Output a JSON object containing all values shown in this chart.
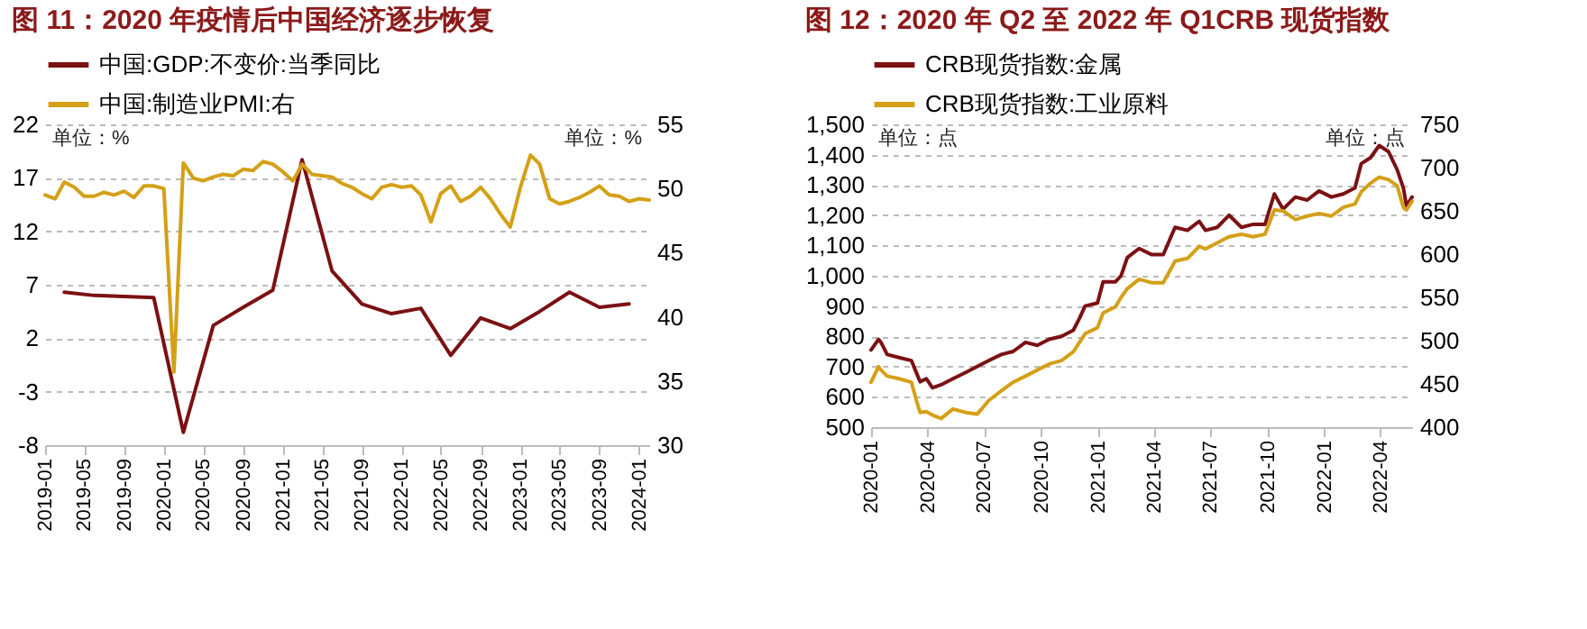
{
  "chart_data": [
    {
      "type": "line",
      "title": "图 11：2020 年疫情后中国经济逐步恢复",
      "annotations": [
        "单位：%",
        "单位：%"
      ],
      "xlim": [
        "2019-01",
        "2024-02"
      ],
      "xticks": [
        "2019-01",
        "2019-05",
        "2019-09",
        "2020-01",
        "2020-05",
        "2020-09",
        "2021-01",
        "2021-05",
        "2021-09",
        "2022-01",
        "2022-05",
        "2022-09",
        "2023-01",
        "2023-05",
        "2023-09",
        "2024-01"
      ],
      "ylim": [
        -8,
        22
      ],
      "yticks": [
        -8,
        -3,
        2,
        7,
        12,
        17,
        22
      ],
      "y2lim": [
        30,
        55
      ],
      "y2ticks": [
        30,
        35,
        40,
        45,
        50,
        55
      ],
      "grid": "y",
      "legend": "top",
      "series": [
        {
          "name": "中国:GDP:不变价:当季同比",
          "color": "#7b1113",
          "x": [
            "2019-03",
            "2019-06",
            "2019-09",
            "2019-12",
            "2020-03",
            "2020-06",
            "2020-09",
            "2020-12",
            "2021-03",
            "2021-06",
            "2021-09",
            "2021-12",
            "2022-03",
            "2022-06",
            "2022-09",
            "2022-12",
            "2023-03",
            "2023-06",
            "2023-09",
            "2023-12"
          ],
          "values": [
            6.3,
            6.0,
            5.9,
            5.8,
            -6.8,
            3.2,
            4.9,
            6.5,
            18.7,
            8.3,
            5.2,
            4.3,
            4.8,
            0.4,
            3.9,
            2.9,
            4.5,
            6.3,
            4.9,
            5.2
          ]
        },
        {
          "name": "中国:制造业PMI:右",
          "color": "#d4a017",
          "axis": "y2",
          "x": [
            "2019-01",
            "2019-02",
            "2019-03",
            "2019-04",
            "2019-05",
            "2019-06",
            "2019-07",
            "2019-08",
            "2019-09",
            "2019-10",
            "2019-11",
            "2019-12",
            "2020-01",
            "2020-02",
            "2020-03",
            "2020-04",
            "2020-05",
            "2020-06",
            "2020-07",
            "2020-08",
            "2020-09",
            "2020-10",
            "2020-11",
            "2020-12",
            "2021-01",
            "2021-02",
            "2021-03",
            "2021-04",
            "2021-05",
            "2021-06",
            "2021-07",
            "2021-08",
            "2021-09",
            "2021-10",
            "2021-11",
            "2021-12",
            "2022-01",
            "2022-02",
            "2022-03",
            "2022-04",
            "2022-05",
            "2022-06",
            "2022-07",
            "2022-08",
            "2022-09",
            "2022-10",
            "2022-11",
            "2022-12",
            "2023-01",
            "2023-02",
            "2023-03",
            "2023-04",
            "2023-05",
            "2023-06",
            "2023-07",
            "2023-08",
            "2023-09",
            "2023-10",
            "2023-11",
            "2023-12",
            "2024-01",
            "2024-02"
          ],
          "values": [
            49.5,
            49.2,
            50.5,
            50.1,
            49.4,
            49.4,
            49.7,
            49.5,
            49.8,
            49.3,
            50.2,
            50.2,
            50.0,
            35.7,
            52.0,
            50.8,
            50.6,
            50.9,
            51.1,
            51.0,
            51.5,
            51.4,
            52.1,
            51.9,
            51.3,
            50.6,
            51.9,
            51.1,
            51.0,
            50.9,
            50.4,
            50.1,
            49.6,
            49.2,
            50.1,
            50.3,
            50.1,
            50.2,
            49.5,
            47.4,
            49.6,
            50.2,
            49.0,
            49.4,
            50.1,
            49.2,
            48.0,
            47.0,
            50.1,
            52.6,
            51.9,
            49.2,
            48.8,
            49.0,
            49.3,
            49.7,
            50.2,
            49.5,
            49.4,
            49.0,
            49.2,
            49.1
          ]
        }
      ]
    },
    {
      "type": "line",
      "title": "图 12：2020 年 Q2 至 2022 年 Q1CRB 现货指数",
      "annotations": [
        "单位：点",
        "单位：点"
      ],
      "xlim": [
        "2020-01-01",
        "2022-05-22"
      ],
      "xticks": [
        "2020-01",
        "2020-04",
        "2020-07",
        "2020-10",
        "2021-01",
        "2021-04",
        "2021-07",
        "2021-10",
        "2022-01",
        "2022-04"
      ],
      "ylim": [
        500,
        1500
      ],
      "yticks": [
        500,
        600,
        700,
        800,
        900,
        {
          "value": 1000,
          "label": "1,000"
        },
        {
          "value": 1100,
          "label": "1,100"
        },
        {
          "value": 1200,
          "label": "1,200"
        },
        {
          "value": 1300,
          "label": "1,300"
        },
        {
          "value": 1400,
          "label": "1,400"
        },
        {
          "value": 1500,
          "label": "1,500"
        }
      ],
      "y2lim": [
        400,
        750
      ],
      "y2ticks": [
        400,
        450,
        500,
        550,
        600,
        650,
        700,
        750
      ],
      "grid": "y",
      "legend": "top",
      "series": [
        {
          "name": "CRB现货指数:金属",
          "color": "#7b1113",
          "x": [
            "2020-01-01",
            "2020-01-13",
            "2020-01-17",
            "2020-01-27",
            "2020-02-15",
            "2020-03-06",
            "2020-03-14",
            "2020-03-20",
            "2020-03-30",
            "2020-04-09",
            "2020-04-23",
            "2020-05-12",
            "2020-06-01",
            "2020-06-20",
            "2020-07-09",
            "2020-07-29",
            "2020-08-17",
            "2020-09-06",
            "2020-09-25",
            "2020-10-14",
            "2020-11-03",
            "2020-11-22",
            "2020-12-02",
            "2020-12-11",
            "2020-12-31",
            "2021-01-09",
            "2021-01-29",
            "2021-02-07",
            "2021-02-17",
            "2021-03-08",
            "2021-03-28",
            "2021-04-16",
            "2021-05-05",
            "2021-05-25",
            "2021-06-13",
            "2021-06-23",
            "2021-07-12",
            "2021-07-31",
            "2021-08-20",
            "2021-09-08",
            "2021-09-27",
            "2021-10-12",
            "2021-10-26",
            "2021-11-15",
            "2021-12-04",
            "2021-12-23",
            "2022-01-12",
            "2022-01-31",
            "2022-02-19",
            "2022-03-01",
            "2022-03-16",
            "2022-03-30",
            "2022-04-14",
            "2022-04-28",
            "2022-05-08",
            "2022-05-13",
            "2022-05-22"
          ],
          "values": [
            755,
            790,
            780,
            740,
            730,
            720,
            680,
            650,
            660,
            630,
            640,
            660,
            680,
            700,
            720,
            740,
            750,
            780,
            770,
            790,
            800,
            820,
            860,
            900,
            910,
            980,
            980,
            1000,
            1060,
            1090,
            1070,
            1070,
            1160,
            1150,
            1180,
            1150,
            1160,
            1200,
            1160,
            1170,
            1170,
            1270,
            1220,
            1260,
            1250,
            1280,
            1260,
            1270,
            1290,
            1370,
            1390,
            1430,
            1410,
            1350,
            1290,
            1230,
            1260
          ]
        },
        {
          "name": "CRB现货指数:工业原料",
          "color": "#d4a017",
          "axis": "y2",
          "x": [
            "2020-01-01",
            "2020-01-13",
            "2020-01-17",
            "2020-01-27",
            "2020-02-15",
            "2020-03-06",
            "2020-03-14",
            "2020-03-20",
            "2020-03-30",
            "2020-04-09",
            "2020-04-23",
            "2020-05-12",
            "2020-06-01",
            "2020-06-20",
            "2020-07-09",
            "2020-07-29",
            "2020-08-17",
            "2020-09-06",
            "2020-09-25",
            "2020-10-14",
            "2020-11-03",
            "2020-11-22",
            "2020-12-02",
            "2020-12-11",
            "2020-12-31",
            "2021-01-09",
            "2021-01-29",
            "2021-02-07",
            "2021-02-17",
            "2021-03-08",
            "2021-03-28",
            "2021-04-16",
            "2021-05-05",
            "2021-05-25",
            "2021-06-13",
            "2021-06-23",
            "2021-07-12",
            "2021-07-31",
            "2021-08-20",
            "2021-09-08",
            "2021-09-27",
            "2021-10-12",
            "2021-10-26",
            "2021-11-15",
            "2021-12-04",
            "2021-12-23",
            "2022-01-12",
            "2022-01-31",
            "2022-02-19",
            "2022-03-01",
            "2022-03-16",
            "2022-03-30",
            "2022-04-14",
            "2022-04-28",
            "2022-05-08",
            "2022-05-13",
            "2022-05-22"
          ],
          "values": [
            452,
            470,
            466,
            459,
            456,
            452,
            431,
            417,
            418,
            414,
            410,
            421,
            417,
            415,
            431,
            442,
            452,
            459,
            466,
            473,
            477,
            487,
            498,
            508,
            515,
            532,
            539,
            550,
            560,
            571,
            567,
            567,
            592,
            595,
            609,
            606,
            613,
            620,
            623,
            620,
            623,
            651,
            650,
            640,
            644,
            647,
            644,
            654,
            658,
            672,
            682,
            689,
            686,
            679,
            654,
            651,
            661
          ]
        }
      ]
    }
  ]
}
